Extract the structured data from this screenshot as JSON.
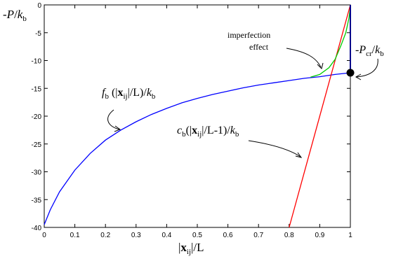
{
  "chart_data": {
    "type": "line",
    "xlabel": "|xij|/L",
    "ylabel": "-P/kb",
    "xlim": [
      0,
      1
    ],
    "ylim": [
      -40,
      0
    ],
    "xticks": [
      "0",
      "0.1",
      "0.2",
      "0.3",
      "0.4",
      "0.5",
      "0.6",
      "0.7",
      "0.8",
      "0.9",
      "1"
    ],
    "yticks": [
      "0",
      "-5",
      "-10",
      "-15",
      "-20",
      "-25",
      "-30",
      "-35",
      "-40"
    ],
    "series": [
      {
        "name": "fb (|xij|/L)/kb",
        "color": "#0000ff",
        "x": [
          0.0,
          0.02,
          0.05,
          0.1,
          0.15,
          0.2,
          0.25,
          0.3,
          0.35,
          0.4,
          0.45,
          0.5,
          0.55,
          0.6,
          0.65,
          0.7,
          0.75,
          0.8,
          0.85,
          0.9,
          0.95,
          1.0
        ],
        "y": [
          -39.5,
          -36.8,
          -33.6,
          -29.7,
          -26.7,
          -24.3,
          -22.5,
          -21.0,
          -19.7,
          -18.6,
          -17.6,
          -16.8,
          -16.1,
          -15.5,
          -14.9,
          -14.4,
          -14.0,
          -13.6,
          -13.2,
          -12.9,
          -12.5,
          -12.2
        ]
      },
      {
        "name": "cb(|xij|/L-1)/kb",
        "color": "#ff0000",
        "x": [
          0.8,
          1.0
        ],
        "y": [
          -40.0,
          0.0
        ]
      },
      {
        "name": "imperfection effect",
        "color": "#00cc00",
        "x": [
          0.87,
          0.9,
          0.93,
          0.95,
          0.97,
          0.985,
          0.995,
          1.0
        ],
        "y": [
          -13.0,
          -12.5,
          -11.3,
          -9.8,
          -7.2,
          -5.0,
          -2.5,
          -0.5
        ]
      },
      {
        "name": "-Pcr/kb",
        "color": "#00008b",
        "x": [
          1.0,
          1.0
        ],
        "y": [
          0.0,
          -12.2
        ]
      }
    ],
    "marker": {
      "x": 1.0,
      "y": -12.2
    },
    "annotations": {
      "imperfection_line1": "imperfection",
      "imperfection_line2": "effect",
      "fb_f": "f",
      "fb_sub": "b",
      "fb_open": " (|",
      "fb_x": "x",
      "fb_ij": "ij",
      "fb_mid": "|/L)/",
      "fb_k": "k",
      "fb_ksub": "b",
      "cb_c": "c",
      "cb_sub": "b",
      "cb_open": "(|",
      "cb_x": "x",
      "cb_ij": "ij",
      "cb_mid": "|/L-1)/",
      "cb_k": "k",
      "cb_ksub": "b",
      "pcr_minus": "-",
      "pcr_P": "P",
      "pcr_sub": "cr",
      "pcr_slash": "/",
      "pcr_k": "k",
      "pcr_ksub": "b"
    },
    "ylabel_parts": {
      "minus": "-",
      "P": "P",
      "slash": "/",
      "k": "k",
      "sub": "b"
    },
    "xlabel_parts": {
      "bar1": "|",
      "x": "x",
      "ij": "ij",
      "rest": "|/L"
    }
  }
}
